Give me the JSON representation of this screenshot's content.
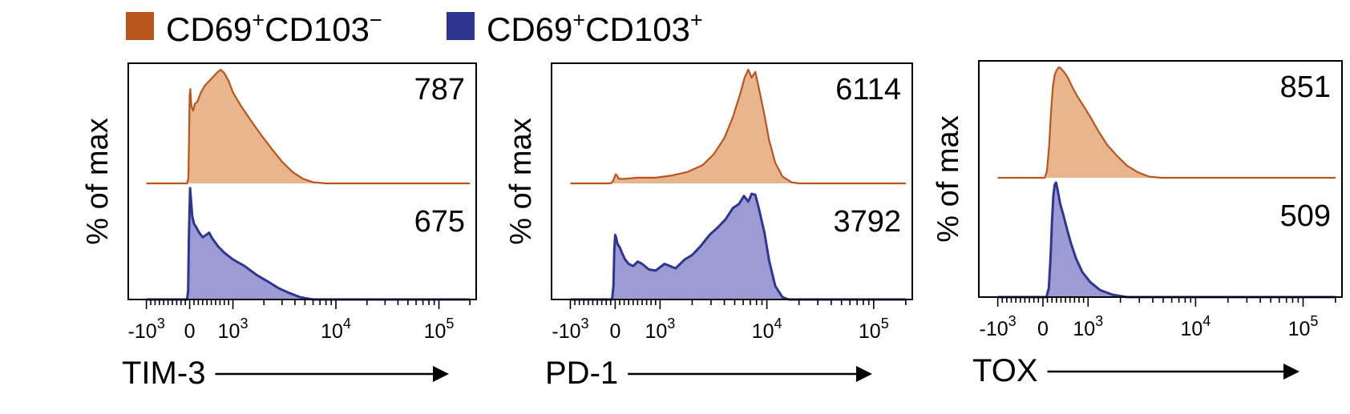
{
  "legend": {
    "items": [
      {
        "name": "CD69",
        "sup": "+",
        "name2": "CD103",
        "sup2": "−",
        "color": "#b9561e",
        "fill": "#e8b58c"
      },
      {
        "name": "CD69",
        "sup": "+",
        "name2": "CD103",
        "sup2": "+",
        "color": "#2e3692",
        "fill": "#9c9bd4"
      }
    ]
  },
  "chart_data": [
    {
      "type": "histogram",
      "ylabel": "% of max",
      "xlabel": "TIM-3",
      "x_scale": "biexponential",
      "tick_labels": [
        {
          "base": "-10",
          "exp": "3",
          "v": -1000
        },
        {
          "base": "0",
          "exp": "",
          "v": 0
        },
        {
          "base": "10",
          "exp": "3",
          "v": 1000
        },
        {
          "base": "10",
          "exp": "4",
          "v": 10000
        },
        {
          "base": "10",
          "exp": "5",
          "v": 100000
        }
      ],
      "series": [
        {
          "name": "CD69+CD103−",
          "mfi": "787",
          "profile": [
            [
              -1000,
              0
            ],
            [
              -60,
              0
            ],
            [
              -30,
              0.05
            ],
            [
              -15,
              0.4
            ],
            [
              0,
              0.78
            ],
            [
              15,
              0.83
            ],
            [
              40,
              0.68
            ],
            [
              80,
              0.64
            ],
            [
              120,
              0.7
            ],
            [
              180,
              0.72
            ],
            [
              260,
              0.8
            ],
            [
              350,
              0.86
            ],
            [
              450,
              0.9
            ],
            [
              550,
              0.94
            ],
            [
              650,
              0.98
            ],
            [
              720,
              1.0
            ],
            [
              800,
              0.97
            ],
            [
              900,
              0.9
            ],
            [
              1000,
              0.8
            ],
            [
              1200,
              0.68
            ],
            [
              1500,
              0.55
            ],
            [
              1900,
              0.42
            ],
            [
              2400,
              0.3
            ],
            [
              3000,
              0.19
            ],
            [
              3800,
              0.1
            ],
            [
              4800,
              0.04
            ],
            [
              6000,
              0.01
            ],
            [
              8000,
              0
            ],
            [
              200000,
              0
            ]
          ]
        },
        {
          "name": "CD69+CD103+",
          "mfi": "675",
          "profile": [
            [
              -1000,
              0
            ],
            [
              -60,
              0
            ],
            [
              -35,
              0.08
            ],
            [
              -18,
              0.55
            ],
            [
              0,
              0.85
            ],
            [
              10,
              1.0
            ],
            [
              30,
              0.9
            ],
            [
              60,
              0.75
            ],
            [
              100,
              0.68
            ],
            [
              150,
              0.65
            ],
            [
              220,
              0.6
            ],
            [
              300,
              0.56
            ],
            [
              380,
              0.58
            ],
            [
              450,
              0.6
            ],
            [
              520,
              0.55
            ],
            [
              650,
              0.48
            ],
            [
              800,
              0.42
            ],
            [
              1000,
              0.36
            ],
            [
              1300,
              0.3
            ],
            [
              1700,
              0.22
            ],
            [
              2200,
              0.16
            ],
            [
              2800,
              0.1
            ],
            [
              3500,
              0.06
            ],
            [
              4500,
              0.02
            ],
            [
              6000,
              0
            ],
            [
              200000,
              0
            ]
          ]
        }
      ]
    },
    {
      "type": "histogram",
      "ylabel": "% of max",
      "xlabel": "PD-1",
      "x_scale": "biexponential",
      "tick_labels": [
        {
          "base": "-10",
          "exp": "3",
          "v": -1000
        },
        {
          "base": "0",
          "exp": "",
          "v": 0
        },
        {
          "base": "10",
          "exp": "3",
          "v": 1000
        },
        {
          "base": "10",
          "exp": "4",
          "v": 10000
        },
        {
          "base": "10",
          "exp": "5",
          "v": 100000
        }
      ],
      "series": [
        {
          "name": "CD69+CD103−",
          "mfi": "6114",
          "profile": [
            [
              -1000,
              0
            ],
            [
              -100,
              0
            ],
            [
              -50,
              0.02
            ],
            [
              -10,
              0.06
            ],
            [
              10,
              0.08
            ],
            [
              40,
              0.07
            ],
            [
              80,
              0.04
            ],
            [
              200,
              0.04
            ],
            [
              500,
              0.05
            ],
            [
              900,
              0.05
            ],
            [
              1300,
              0.07
            ],
            [
              1800,
              0.1
            ],
            [
              2500,
              0.16
            ],
            [
              3200,
              0.26
            ],
            [
              4000,
              0.4
            ],
            [
              4800,
              0.58
            ],
            [
              5600,
              0.78
            ],
            [
              6200,
              0.93
            ],
            [
              6700,
              1.0
            ],
            [
              7200,
              0.93
            ],
            [
              7800,
              0.98
            ],
            [
              8500,
              0.82
            ],
            [
              9500,
              0.6
            ],
            [
              10500,
              0.38
            ],
            [
              12000,
              0.18
            ],
            [
              14000,
              0.06
            ],
            [
              17000,
              0.01
            ],
            [
              20000,
              0
            ],
            [
              200000,
              0
            ]
          ]
        },
        {
          "name": "CD69+CD103+",
          "mfi": "3792",
          "profile": [
            [
              -1000,
              0
            ],
            [
              -70,
              0
            ],
            [
              -40,
              0.12
            ],
            [
              -20,
              0.45
            ],
            [
              0,
              0.58
            ],
            [
              20,
              0.56
            ],
            [
              50,
              0.5
            ],
            [
              100,
              0.47
            ],
            [
              150,
              0.42
            ],
            [
              220,
              0.36
            ],
            [
              300,
              0.32
            ],
            [
              400,
              0.3
            ],
            [
              500,
              0.34
            ],
            [
              600,
              0.32
            ],
            [
              750,
              0.27
            ],
            [
              900,
              0.26
            ],
            [
              1100,
              0.32
            ],
            [
              1400,
              0.28
            ],
            [
              1700,
              0.36
            ],
            [
              2000,
              0.4
            ],
            [
              2400,
              0.48
            ],
            [
              2900,
              0.58
            ],
            [
              3500,
              0.65
            ],
            [
              4100,
              0.72
            ],
            [
              4800,
              0.82
            ],
            [
              5500,
              0.86
            ],
            [
              6100,
              0.93
            ],
            [
              6700,
              0.88
            ],
            [
              7200,
              0.95
            ],
            [
              7800,
              0.94
            ],
            [
              8500,
              0.8
            ],
            [
              9500,
              0.6
            ],
            [
              10500,
              0.35
            ],
            [
              12000,
              0.12
            ],
            [
              14000,
              0.02
            ],
            [
              16000,
              0
            ],
            [
              200000,
              0
            ]
          ]
        }
      ]
    },
    {
      "type": "histogram",
      "ylabel": "% of max",
      "xlabel": "TOX",
      "x_scale": "biexponential",
      "tick_labels": [
        {
          "base": "-10",
          "exp": "3",
          "v": -1000
        },
        {
          "base": "0",
          "exp": "",
          "v": 0
        },
        {
          "base": "10",
          "exp": "3",
          "v": 1000
        },
        {
          "base": "10",
          "exp": "4",
          "v": 10000
        },
        {
          "base": "10",
          "exp": "5",
          "v": 100000
        }
      ],
      "series": [
        {
          "name": "CD69+CD103−",
          "mfi": "851",
          "profile": [
            [
              -1000,
              0
            ],
            [
              40,
              0
            ],
            [
              90,
              0.06
            ],
            [
              140,
              0.3
            ],
            [
              180,
              0.6
            ],
            [
              220,
              0.82
            ],
            [
              260,
              0.93
            ],
            [
              300,
              0.97
            ],
            [
              350,
              1.0
            ],
            [
              400,
              0.99
            ],
            [
              480,
              0.95
            ],
            [
              560,
              0.9
            ],
            [
              650,
              0.82
            ],
            [
              760,
              0.74
            ],
            [
              900,
              0.65
            ],
            [
              1050,
              0.55
            ],
            [
              1250,
              0.42
            ],
            [
              1500,
              0.3
            ],
            [
              1850,
              0.2
            ],
            [
              2300,
              0.11
            ],
            [
              2900,
              0.05
            ],
            [
              3700,
              0.01
            ],
            [
              4800,
              0
            ],
            [
              200000,
              0
            ]
          ]
        },
        {
          "name": "CD69+CD103+",
          "mfi": "509",
          "profile": [
            [
              -1000,
              0
            ],
            [
              80,
              0
            ],
            [
              130,
              0.08
            ],
            [
              170,
              0.35
            ],
            [
              200,
              0.65
            ],
            [
              230,
              0.88
            ],
            [
              260,
              0.98
            ],
            [
              290,
              1.0
            ],
            [
              330,
              0.93
            ],
            [
              380,
              0.82
            ],
            [
              450,
              0.72
            ],
            [
              530,
              0.6
            ],
            [
              620,
              0.47
            ],
            [
              730,
              0.34
            ],
            [
              870,
              0.22
            ],
            [
              1050,
              0.13
            ],
            [
              1300,
              0.06
            ],
            [
              1700,
              0.02
            ],
            [
              2300,
              0
            ],
            [
              200000,
              0
            ]
          ]
        }
      ]
    }
  ]
}
